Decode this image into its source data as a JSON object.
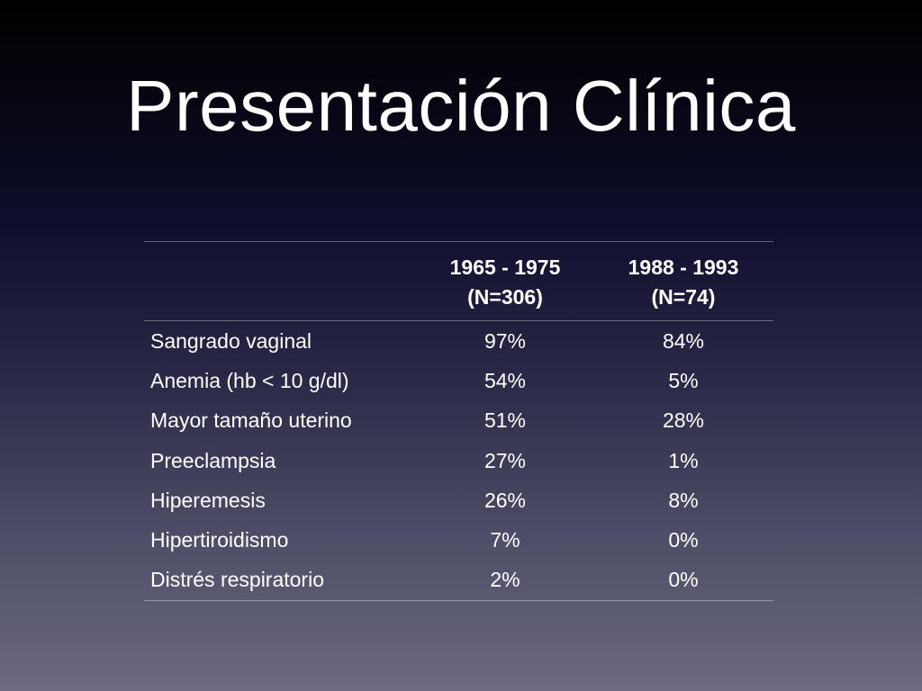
{
  "slide": {
    "title": "Presentación Clínica"
  },
  "table": {
    "header": [
      {
        "line1": "",
        "line2": ""
      },
      {
        "line1": "1965 - 1975",
        "line2": "(N=306)"
      },
      {
        "line1": "1988 - 1993",
        "line2": "(N=74)"
      }
    ],
    "rows": [
      {
        "label": "Sangrado vaginal",
        "a": "97%",
        "b": "84%"
      },
      {
        "label": "Anemia (hb < 10 g/dl)",
        "a": "54%",
        "b": "5%"
      },
      {
        "label": "Mayor tamaño uterino",
        "a": "51%",
        "b": "28%"
      },
      {
        "label": "Preeclampsia",
        "a": "27%",
        "b": "1%"
      },
      {
        "label": "Hiperemesis",
        "a": "26%",
        "b": "8%"
      },
      {
        "label": "Hipertiroidismo",
        "a": "7%",
        "b": "0%"
      },
      {
        "label": "Distrés respiratorio",
        "a": "2%",
        "b": "0%"
      }
    ]
  }
}
